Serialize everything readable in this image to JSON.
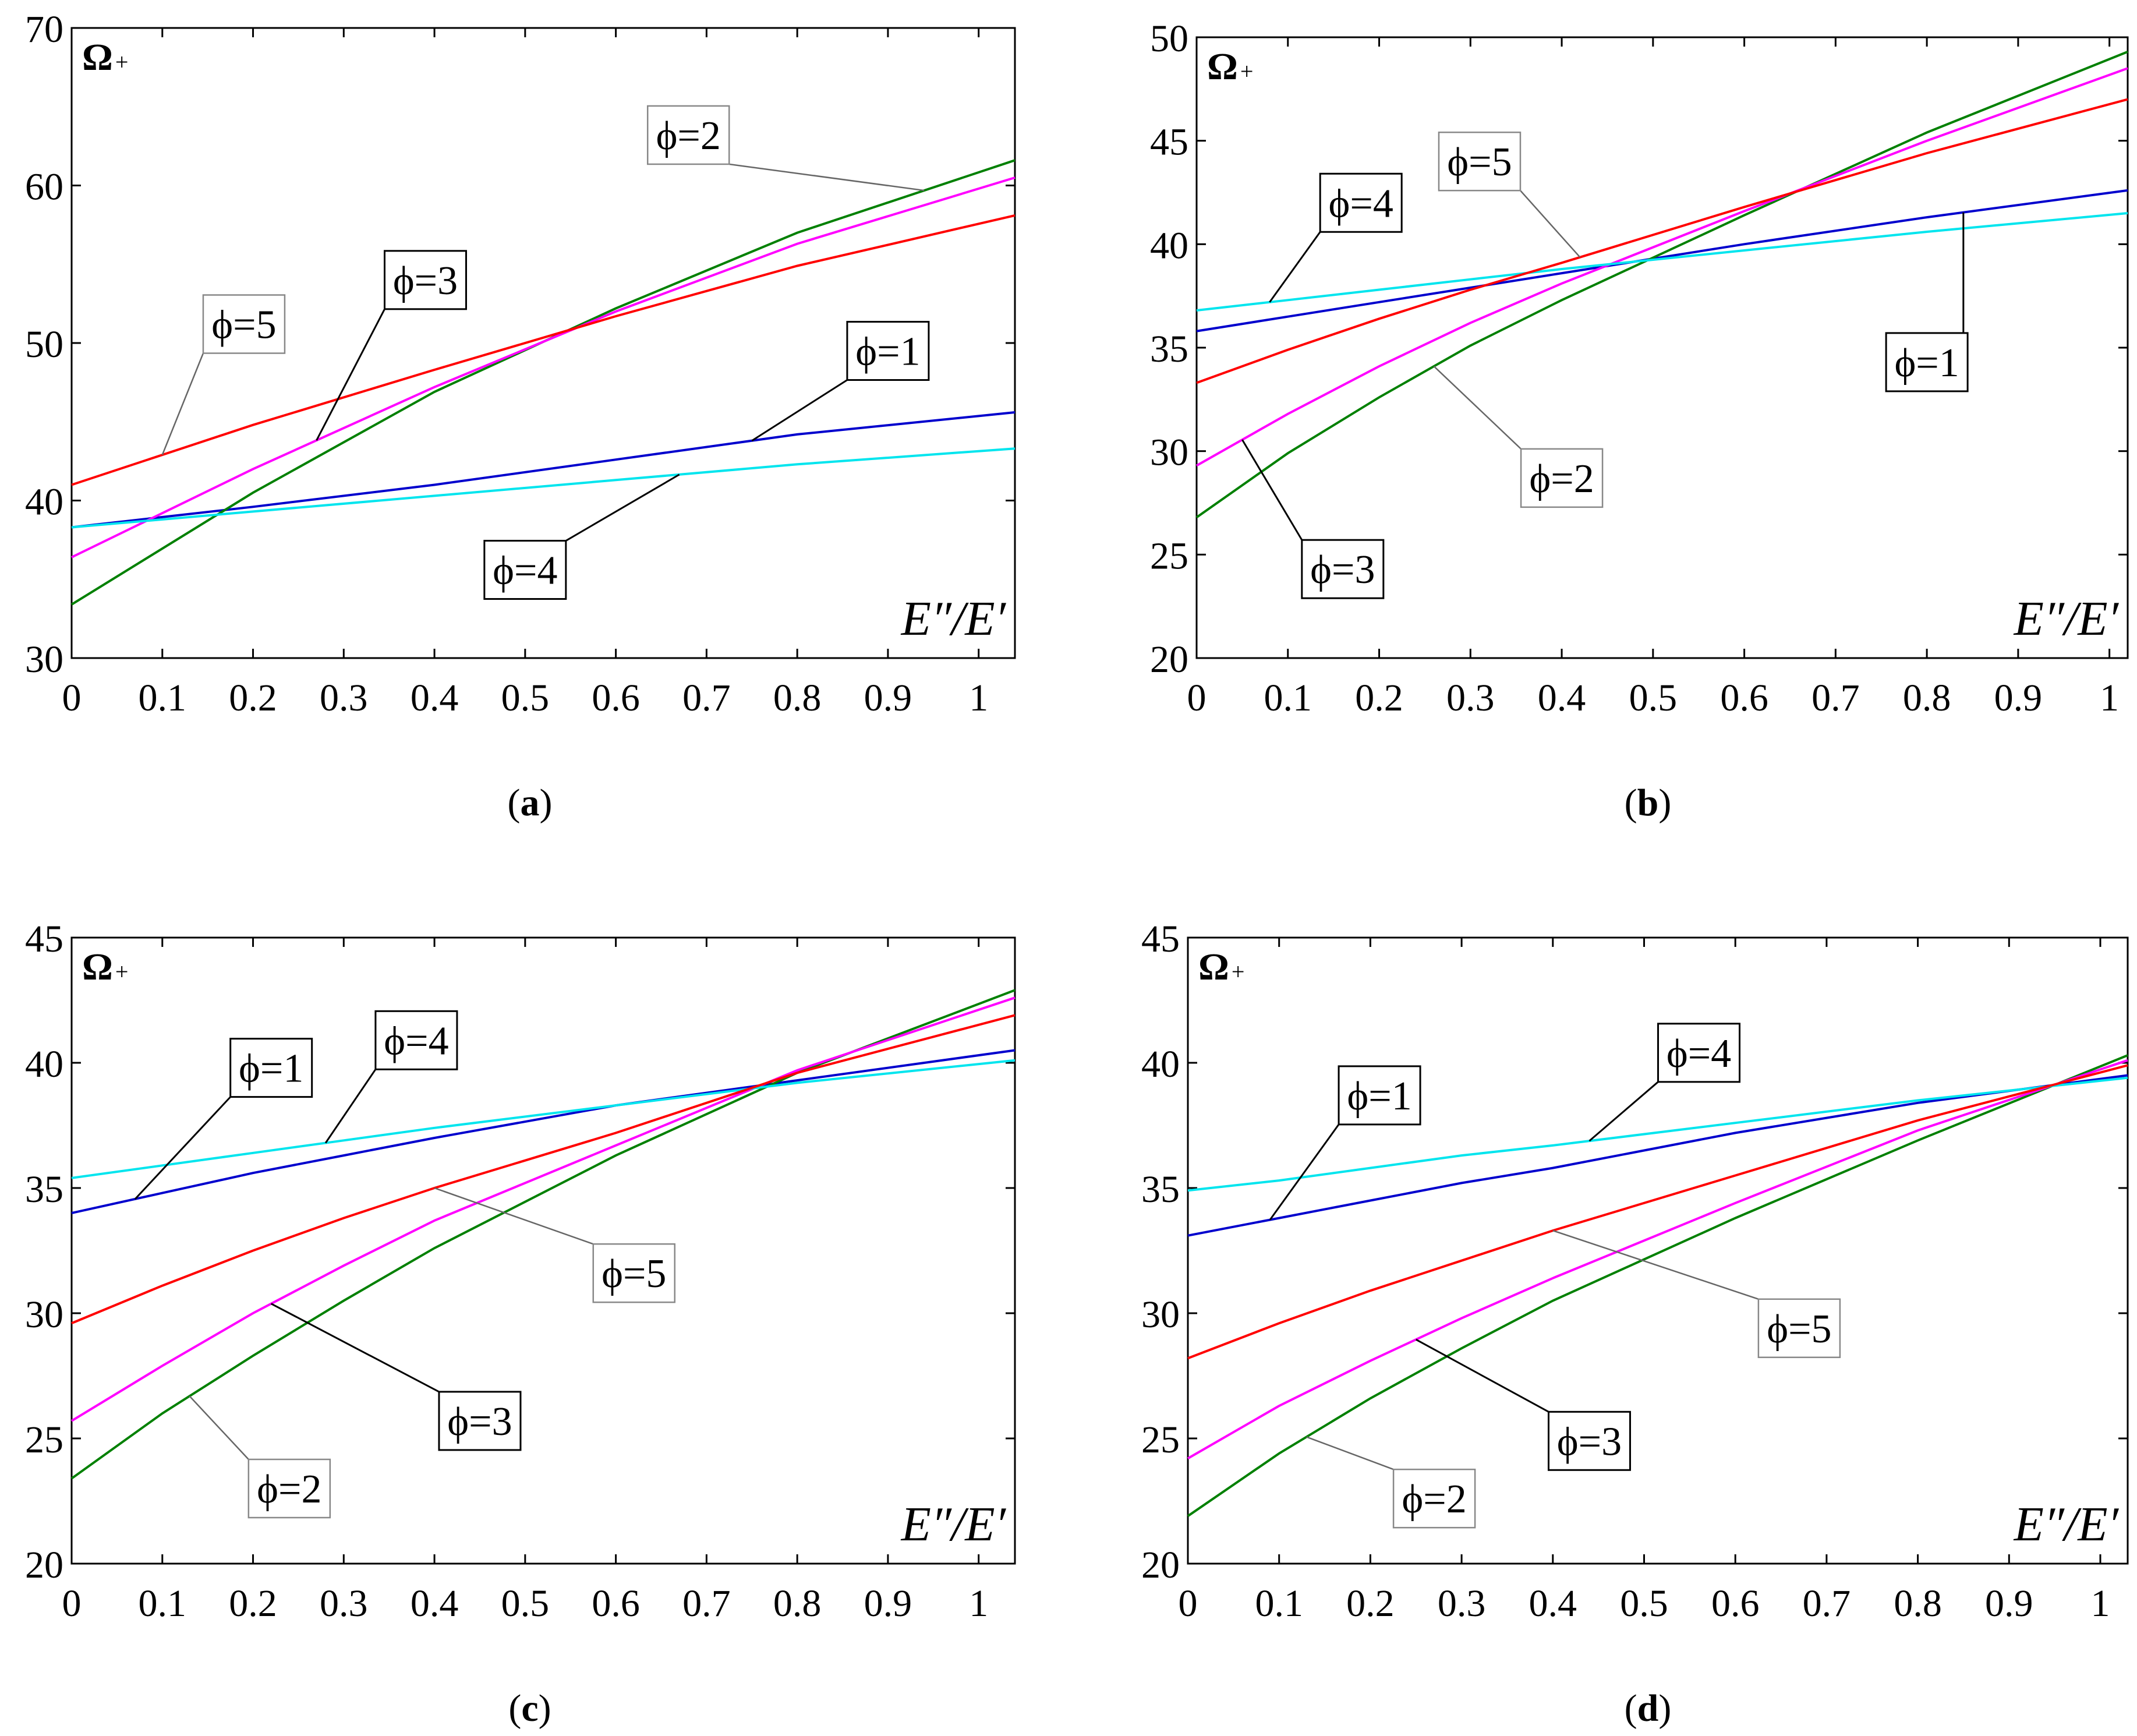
{
  "figure": {
    "ylabel": "Ω",
    "ylabel_sub": "+",
    "xlabel": "E″/E′"
  },
  "colors": {
    "phi1": "#0000cd",
    "phi2": "#008000",
    "phi3": "#ff00ff",
    "phi4": "#00e5ee",
    "phi5": "#ff0000"
  },
  "chart_data": [
    {
      "type": "line",
      "caption_letter": "a",
      "xlabel": "E″/E′",
      "ylabel": "Ω+",
      "xlim": [
        0,
        1.04
      ],
      "ylim": [
        30,
        70
      ],
      "xticks": [
        0,
        0.1,
        0.2,
        0.3,
        0.4,
        0.5,
        0.6,
        0.7,
        0.8,
        0.9,
        1
      ],
      "xtick_labels": [
        "0",
        "0.1",
        "0.2",
        "0.3",
        "0.4",
        "0.5",
        "0.6",
        "0.7",
        "0.8",
        "0.9",
        "1"
      ],
      "yticks": [
        30,
        40,
        50,
        60,
        70
      ],
      "ytick_labels": [
        "30",
        "40",
        "50",
        "60",
        "70"
      ],
      "x": [
        0,
        0.2,
        0.4,
        0.6,
        0.8,
        1.04
      ],
      "series": [
        {
          "name": "ϕ=1",
          "color": "#0000cd",
          "values": [
            38.3,
            39.6,
            41.0,
            42.6,
            44.2,
            45.6
          ]
        },
        {
          "name": "ϕ=2",
          "color": "#008000",
          "values": [
            33.4,
            40.5,
            46.9,
            52.2,
            57.0,
            61.6
          ]
        },
        {
          "name": "ϕ=3",
          "color": "#ff00ff",
          "values": [
            36.4,
            42.0,
            47.2,
            52.0,
            56.3,
            60.5
          ]
        },
        {
          "name": "ϕ=4",
          "color": "#00e5ee",
          "values": [
            38.3,
            39.3,
            40.3,
            41.3,
            42.3,
            43.3
          ]
        },
        {
          "name": "ϕ=5",
          "color": "#ff0000",
          "values": [
            41.0,
            44.8,
            48.3,
            51.7,
            54.9,
            58.1
          ]
        }
      ],
      "annotations": [
        {
          "text": "ϕ=2",
          "boxed": true,
          "box_style": "light",
          "series": 1,
          "at_x": 0.94,
          "label_x": 0.68,
          "label_y": 63.2
        },
        {
          "text": "ϕ=5",
          "boxed": true,
          "box_style": "light",
          "series": 4,
          "at_x": 0.1,
          "label_x": 0.19,
          "label_y": 51.2
        },
        {
          "text": "ϕ=3",
          "boxed": true,
          "box_style": "dark",
          "series": 2,
          "at_x": 0.27,
          "label_x": 0.39,
          "label_y": 54.0
        },
        {
          "text": "ϕ=1",
          "boxed": true,
          "box_style": "dark",
          "series": 0,
          "at_x": 0.75,
          "label_x": 0.9,
          "label_y": 49.5
        },
        {
          "text": "ϕ=4",
          "boxed": true,
          "box_style": "dark",
          "series": 3,
          "at_x": 0.67,
          "label_x": 0.5,
          "label_y": 35.6
        }
      ]
    },
    {
      "type": "line",
      "caption_letter": "b",
      "xlabel": "E″/E′",
      "ylabel": "Ω+",
      "xlim": [
        0,
        1.02
      ],
      "ylim": [
        20,
        50
      ],
      "xticks": [
        0,
        0.1,
        0.2,
        0.3,
        0.4,
        0.5,
        0.6,
        0.7,
        0.8,
        0.9,
        1
      ],
      "xtick_labels": [
        "0",
        "0.1",
        "0.2",
        "0.3",
        "0.4",
        "0.5",
        "0.6",
        "0.7",
        "0.8",
        "0.9",
        "1"
      ],
      "yticks": [
        20,
        25,
        30,
        35,
        40,
        45,
        50
      ],
      "ytick_labels": [
        "20",
        "25",
        "30",
        "35",
        "40",
        "45",
        "50"
      ],
      "x": [
        0,
        0.1,
        0.2,
        0.3,
        0.4,
        0.6,
        0.8,
        1.02
      ],
      "series": [
        {
          "name": "ϕ=1",
          "color": "#0000cd",
          "values": [
            35.8,
            36.5,
            37.2,
            37.9,
            38.6,
            40.0,
            41.3,
            42.6
          ]
        },
        {
          "name": "ϕ=2",
          "color": "#008000",
          "values": [
            26.8,
            29.9,
            32.6,
            35.1,
            37.3,
            41.4,
            45.4,
            49.3
          ]
        },
        {
          "name": "ϕ=3",
          "color": "#ff00ff",
          "values": [
            29.3,
            31.8,
            34.1,
            36.2,
            38.1,
            41.6,
            45.0,
            48.5
          ]
        },
        {
          "name": "ϕ=4",
          "color": "#00e5ee",
          "values": [
            36.8,
            37.3,
            37.8,
            38.3,
            38.8,
            39.7,
            40.6,
            41.5
          ]
        },
        {
          "name": "ϕ=5",
          "color": "#ff0000",
          "values": [
            33.3,
            34.9,
            36.4,
            37.8,
            39.1,
            41.8,
            44.4,
            47.0
          ]
        }
      ],
      "annotations": [
        {
          "text": "ϕ=4",
          "boxed": true,
          "box_style": "dark",
          "series": 3,
          "at_x": 0.08,
          "label_x": 0.18,
          "label_y": 42.0
        },
        {
          "text": "ϕ=5",
          "boxed": true,
          "box_style": "light",
          "series": 4,
          "at_x": 0.42,
          "label_x": 0.31,
          "label_y": 44.0
        },
        {
          "text": "ϕ=1",
          "boxed": true,
          "box_style": "dark",
          "series": 0,
          "at_x": 0.84,
          "label_x": 0.8,
          "label_y": 34.3
        },
        {
          "text": "ϕ=2",
          "boxed": true,
          "box_style": "light",
          "series": 1,
          "at_x": 0.26,
          "label_x": 0.4,
          "label_y": 28.7
        },
        {
          "text": "ϕ=3",
          "boxed": true,
          "box_style": "dark",
          "series": 2,
          "at_x": 0.05,
          "label_x": 0.16,
          "label_y": 24.3
        }
      ]
    },
    {
      "type": "line",
      "caption_letter": "c",
      "xlabel": "E″/E′",
      "ylabel": "Ω+",
      "xlim": [
        0,
        1.04
      ],
      "ylim": [
        20,
        45
      ],
      "xticks": [
        0,
        0.1,
        0.2,
        0.3,
        0.4,
        0.5,
        0.6,
        0.7,
        0.8,
        0.9,
        1
      ],
      "xtick_labels": [
        "0",
        "0.1",
        "0.2",
        "0.3",
        "0.4",
        "0.5",
        "0.6",
        "0.7",
        "0.8",
        "0.9",
        "1"
      ],
      "yticks": [
        20,
        25,
        30,
        35,
        40,
        45
      ],
      "ytick_labels": [
        "20",
        "25",
        "30",
        "35",
        "40",
        "45"
      ],
      "x": [
        0,
        0.1,
        0.2,
        0.3,
        0.4,
        0.6,
        0.8,
        1.04
      ],
      "series": [
        {
          "name": "ϕ=1",
          "color": "#0000cd",
          "values": [
            34.0,
            34.8,
            35.6,
            36.3,
            37.0,
            38.3,
            39.3,
            40.5
          ]
        },
        {
          "name": "ϕ=2",
          "color": "#008000",
          "values": [
            23.4,
            26.0,
            28.3,
            30.5,
            32.6,
            36.3,
            39.6,
            42.9
          ]
        },
        {
          "name": "ϕ=3",
          "color": "#ff00ff",
          "values": [
            25.7,
            27.9,
            30.0,
            31.9,
            33.7,
            36.7,
            39.7,
            42.6
          ]
        },
        {
          "name": "ϕ=4",
          "color": "#00e5ee",
          "values": [
            35.4,
            35.9,
            36.4,
            36.9,
            37.4,
            38.3,
            39.2,
            40.1
          ]
        },
        {
          "name": "ϕ=5",
          "color": "#ff0000",
          "values": [
            29.6,
            31.1,
            32.5,
            33.8,
            35.0,
            37.2,
            39.6,
            41.9
          ]
        }
      ],
      "annotations": [
        {
          "text": "ϕ=1",
          "boxed": true,
          "box_style": "dark",
          "series": 0,
          "at_x": 0.07,
          "label_x": 0.22,
          "label_y": 39.8
        },
        {
          "text": "ϕ=4",
          "boxed": true,
          "box_style": "dark",
          "series": 3,
          "at_x": 0.28,
          "label_x": 0.38,
          "label_y": 40.9
        },
        {
          "text": "ϕ=5",
          "boxed": true,
          "box_style": "light",
          "series": 4,
          "at_x": 0.4,
          "label_x": 0.62,
          "label_y": 31.6
        },
        {
          "text": "ϕ=3",
          "boxed": true,
          "box_style": "dark",
          "series": 2,
          "at_x": 0.22,
          "label_x": 0.45,
          "label_y": 25.7
        },
        {
          "text": "ϕ=2",
          "boxed": true,
          "box_style": "light",
          "series": 1,
          "at_x": 0.13,
          "label_x": 0.24,
          "label_y": 23.0
        }
      ]
    },
    {
      "type": "line",
      "caption_letter": "d",
      "xlabel": "E″/E′",
      "ylabel": "Ω+",
      "xlim": [
        0,
        1.03
      ],
      "ylim": [
        20,
        45
      ],
      "xticks": [
        0,
        0.1,
        0.2,
        0.3,
        0.4,
        0.5,
        0.6,
        0.7,
        0.8,
        0.9,
        1
      ],
      "xtick_labels": [
        "0",
        "0.1",
        "0.2",
        "0.3",
        "0.4",
        "0.5",
        "0.6",
        "0.7",
        "0.8",
        "0.9",
        "1"
      ],
      "yticks": [
        20,
        25,
        30,
        35,
        40,
        45
      ],
      "ytick_labels": [
        "20",
        "25",
        "30",
        "35",
        "40",
        "45"
      ],
      "x": [
        0,
        0.1,
        0.2,
        0.3,
        0.4,
        0.6,
        0.8,
        1.03
      ],
      "series": [
        {
          "name": "ϕ=1",
          "color": "#0000cd",
          "values": [
            33.1,
            33.8,
            34.5,
            35.2,
            35.8,
            37.2,
            38.4,
            39.5
          ]
        },
        {
          "name": "ϕ=2",
          "color": "#008000",
          "values": [
            21.9,
            24.4,
            26.6,
            28.6,
            30.5,
            33.8,
            36.9,
            40.3
          ]
        },
        {
          "name": "ϕ=3",
          "color": "#ff00ff",
          "values": [
            24.2,
            26.3,
            28.1,
            29.8,
            31.4,
            34.4,
            37.3,
            40.1
          ]
        },
        {
          "name": "ϕ=4",
          "color": "#00e5ee",
          "values": [
            34.9,
            35.3,
            35.8,
            36.3,
            36.7,
            37.6,
            38.5,
            39.4
          ]
        },
        {
          "name": "ϕ=5",
          "color": "#ff0000",
          "values": [
            28.2,
            29.6,
            30.9,
            32.1,
            33.3,
            35.5,
            37.7,
            39.9
          ]
        }
      ],
      "annotations": [
        {
          "text": "ϕ=1",
          "boxed": true,
          "box_style": "dark",
          "series": 0,
          "at_x": 0.09,
          "label_x": 0.21,
          "label_y": 38.7
        },
        {
          "text": "ϕ=4",
          "boxed": true,
          "box_style": "dark",
          "series": 3,
          "at_x": 0.44,
          "label_x": 0.56,
          "label_y": 40.4
        },
        {
          "text": "ϕ=5",
          "boxed": true,
          "box_style": "light",
          "series": 4,
          "at_x": 0.4,
          "label_x": 0.67,
          "label_y": 29.4
        },
        {
          "text": "ϕ=3",
          "boxed": true,
          "box_style": "dark",
          "series": 2,
          "at_x": 0.25,
          "label_x": 0.44,
          "label_y": 24.9
        },
        {
          "text": "ϕ=2",
          "boxed": true,
          "box_style": "light",
          "series": 1,
          "at_x": 0.13,
          "label_x": 0.27,
          "label_y": 22.6
        }
      ]
    }
  ]
}
